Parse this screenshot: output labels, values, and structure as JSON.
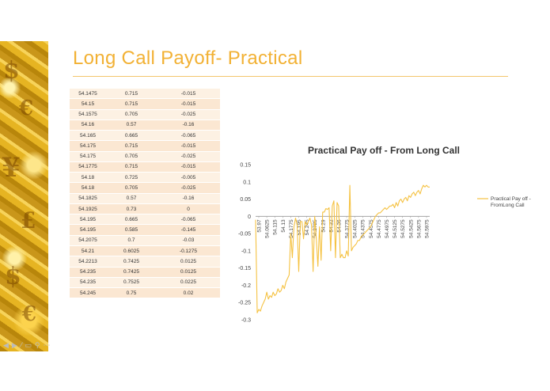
{
  "slide": {
    "title": "Long Call Payoff- Practical"
  },
  "table": {
    "rows": [
      [
        "54.1475",
        "0.715",
        "-0.015"
      ],
      [
        "54.15",
        "0.715",
        "-0.015"
      ],
      [
        "54.1575",
        "0.705",
        "-0.025"
      ],
      [
        "54.16",
        "0.57",
        "-0.16"
      ],
      [
        "54.165",
        "0.665",
        "-0.065"
      ],
      [
        "54.175",
        "0.715",
        "-0.015"
      ],
      [
        "54.175",
        "0.705",
        "-0.025"
      ],
      [
        "54.1775",
        "0.715",
        "-0.015"
      ],
      [
        "54.18",
        "0.725",
        "-0.005"
      ],
      [
        "54.18",
        "0.705",
        "-0.025"
      ],
      [
        "54.1825",
        "0.57",
        "-0.16"
      ],
      [
        "54.1925",
        "0.73",
        "0"
      ],
      [
        "54.195",
        "0.665",
        "-0.065"
      ],
      [
        "54.195",
        "0.585",
        "-0.145"
      ],
      [
        "54.2075",
        "0.7",
        "-0.03"
      ],
      [
        "54.21",
        "0.6025",
        "-0.1275"
      ],
      [
        "54.2213",
        "0.7425",
        "0.0125"
      ],
      [
        "54.235",
        "0.7425",
        "0.0125"
      ],
      [
        "54.235",
        "0.7525",
        "0.0225"
      ],
      [
        "54.245",
        "0.75",
        "0.02"
      ]
    ]
  },
  "chart_data": {
    "type": "line",
    "title": "Practical Pay off - From Long Call",
    "ylim": [
      -0.3,
      0.15
    ],
    "yticks": [
      "0.15",
      "0.1",
      "0.05",
      "0",
      "-0.05",
      "-0.1",
      "-0.15",
      "-0.2",
      "-0.25",
      "-0.3"
    ],
    "x_tick_labels": [
      "53.97",
      "54.0625",
      "54.115",
      "54.13",
      "54.1775",
      "54.195",
      "54.245",
      "54.2725",
      "54.29",
      "54.32",
      "54.36",
      "54.3775",
      "54.4025",
      "54.4375",
      "54.4575",
      "54.4775",
      "54.4975",
      "54.5125",
      "54.5275",
      "54.5425",
      "54.5675",
      "54.5975"
    ],
    "legend": {
      "position": "right",
      "label": "Practical Pay off -\nFromLong Call"
    },
    "series": [
      {
        "name": "Practical Pay off - FromLong Call",
        "color": "#f5c242",
        "values": [
          -0.01,
          -0.28,
          -0.27,
          -0.275,
          -0.26,
          -0.25,
          -0.24,
          -0.22,
          -0.24,
          -0.23,
          -0.235,
          -0.22,
          -0.23,
          -0.225,
          -0.21,
          -0.22,
          -0.215,
          -0.2,
          -0.21,
          -0.19,
          -0.18,
          -0.17,
          -0.05,
          -0.12,
          -0.03,
          -0.005,
          -0.025,
          -0.16,
          -0.015,
          -0.015,
          -0.065,
          -0.015,
          -0.025,
          -0.015,
          -0.005,
          -0.025,
          -0.16,
          0,
          -0.065,
          -0.145,
          -0.03,
          -0.1275,
          0.0125,
          0.0125,
          0.0225,
          0.02,
          0.025,
          -0.1,
          0.03,
          0.045,
          -0.12,
          0.04,
          0.03,
          -0.12,
          -0.11,
          -0.12,
          -0.12,
          -0.1,
          -0.115,
          0.09,
          -0.1,
          -0.09,
          -0.085,
          -0.08,
          -0.07,
          -0.07,
          -0.06,
          -0.055,
          -0.05,
          -0.045,
          -0.04,
          -0.035,
          -0.03,
          -0.02,
          -0.01,
          0,
          0.005,
          0.01,
          0.01,
          0.015,
          0.02,
          0.025,
          0.02,
          0.025,
          0.03,
          0.03,
          0.035,
          0.025,
          0.04,
          0.03,
          0.045,
          0.05,
          0.04,
          0.05,
          0.055,
          0.045,
          0.06,
          0.055,
          0.065,
          0.07,
          0.06,
          0.07,
          0.075,
          0.065,
          0.08,
          0.09,
          0.085,
          0.09,
          0.085,
          0.085
        ]
      }
    ]
  },
  "controls": {
    "items": [
      "◀",
      "▶",
      "⁄",
      "▭",
      "⚲",
      "⋯"
    ]
  }
}
